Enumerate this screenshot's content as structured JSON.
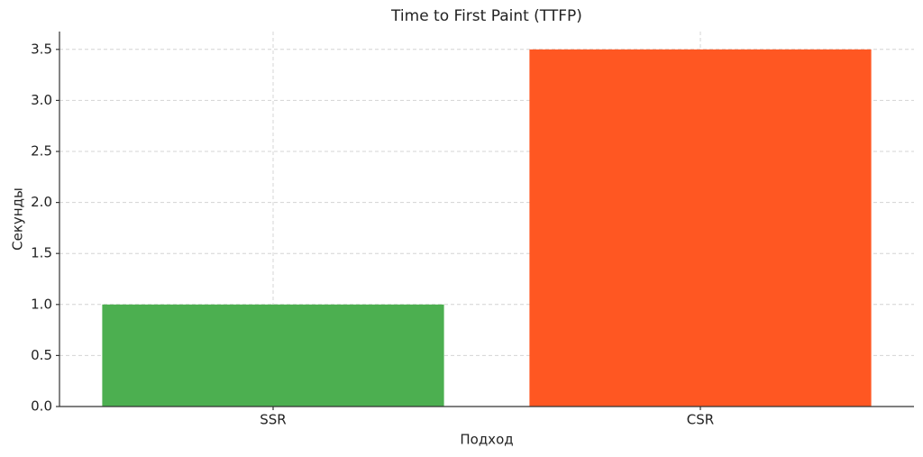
{
  "chart_data": {
    "type": "bar",
    "title": "Time to First Paint (TTFP)",
    "x_label": "Подход",
    "y_label": "Секунды",
    "categories": [
      "SSR",
      "CSR"
    ],
    "values": [
      1.0,
      3.5
    ],
    "colors": [
      "#4caf50",
      "#ff5722"
    ],
    "ylim": [
      0,
      3.675
    ],
    "yticks": [
      {
        "value": 0,
        "label": "0.0"
      },
      {
        "value": 0.5,
        "label": "0.5"
      },
      {
        "value": 1,
        "label": "1.0"
      },
      {
        "value": 1.5,
        "label": "1.5"
      },
      {
        "value": 2,
        "label": "2.0"
      },
      {
        "value": 2.5,
        "label": "2.5"
      },
      {
        "value": 3,
        "label": "3.0"
      },
      {
        "value": 3.5,
        "label": "3.5"
      }
    ],
    "grid": true
  }
}
